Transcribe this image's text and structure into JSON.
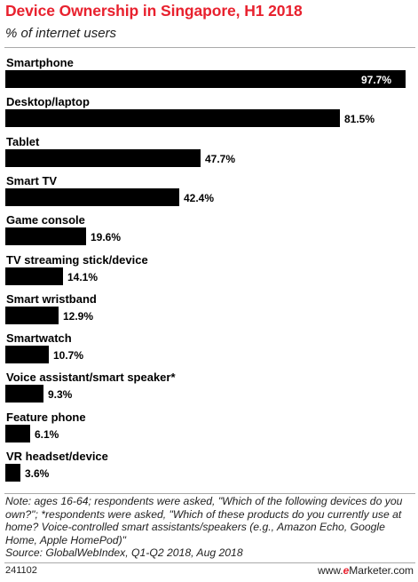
{
  "title": "Device Ownership in Singapore, H1 2018",
  "subtitle": "% of internet users",
  "note": "Note: ages 16-64; respondents were asked, \"Which of the following devices do you own?\"; *respondents were asked, \"Which of these products do you currently use at home? Voice-controlled smart assistants/speakers (e.g., Amazon Echo, Google Home, Apple HomePod)\"",
  "source": "Source: GlobalWebIndex, Q1-Q2 2018, Aug 2018",
  "chart_id": "241102",
  "brand": {
    "prefix": "www.",
    "accent": "e",
    "name": "Marketer",
    "suffix": ".com"
  },
  "colors": {
    "title": "#e8212e",
    "bar": "#000000"
  },
  "chart_data": {
    "type": "bar",
    "orientation": "horizontal",
    "title": "Device Ownership in Singapore, H1 2018",
    "subtitle": "% of internet users",
    "categories": [
      "Smartphone",
      "Desktop/laptop",
      "Tablet",
      "Smart TV",
      "Game console",
      "TV streaming stick/device",
      "Smart wristband",
      "Smartwatch",
      "Voice assistant/smart speaker*",
      "Feature phone",
      "VR headset/device"
    ],
    "values": [
      97.7,
      81.5,
      47.7,
      42.4,
      19.6,
      14.1,
      12.9,
      10.7,
      9.3,
      6.1,
      3.6
    ],
    "value_labels": [
      "97.7%",
      "81.5%",
      "47.7%",
      "42.4%",
      "19.6%",
      "14.1%",
      "12.9%",
      "10.7%",
      "9.3%",
      "6.1%",
      "3.6%"
    ],
    "xlim": [
      0,
      100
    ],
    "grid": false,
    "legend": "none"
  }
}
